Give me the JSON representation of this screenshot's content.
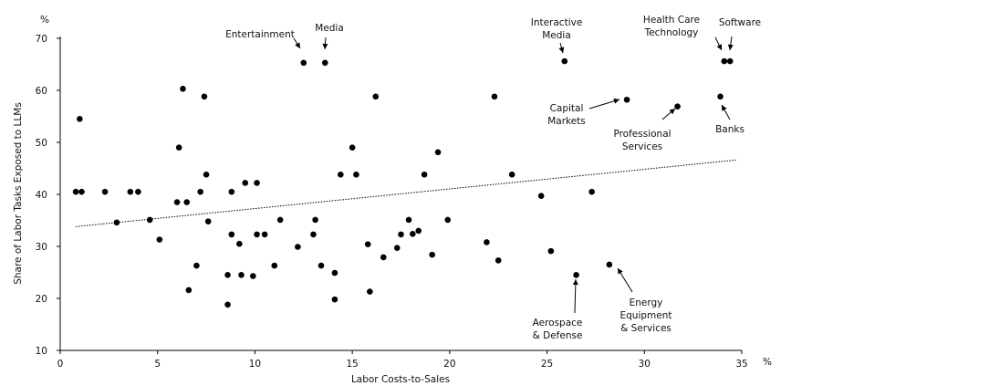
{
  "chart_data": {
    "type": "scatter",
    "xlabel": "Labor Costs-to-Sales",
    "ylabel": "Share of Labor Tasks Exposed to LLMs",
    "x_unit": "%",
    "y_unit": "%",
    "xlim": [
      0,
      35
    ],
    "ylim": [
      10,
      70
    ],
    "x_ticks": [
      0,
      5,
      10,
      15,
      20,
      25,
      30,
      35
    ],
    "y_ticks": [
      10,
      20,
      30,
      40,
      50,
      60,
      70
    ],
    "grid": false,
    "trendline": {
      "style": "dotted",
      "x": [
        0.8,
        34.7
      ],
      "y": [
        33.8,
        46.6
      ]
    },
    "points": [
      {
        "x": 0.8,
        "y": 40.5
      },
      {
        "x": 1.0,
        "y": 54.5
      },
      {
        "x": 1.1,
        "y": 40.5
      },
      {
        "x": 2.3,
        "y": 40.5
      },
      {
        "x": 2.9,
        "y": 34.6
      },
      {
        "x": 3.6,
        "y": 40.5
      },
      {
        "x": 4.0,
        "y": 40.5
      },
      {
        "x": 4.6,
        "y": 35.1
      },
      {
        "x": 5.1,
        "y": 31.3
      },
      {
        "x": 6.0,
        "y": 38.5
      },
      {
        "x": 6.1,
        "y": 49.0
      },
      {
        "x": 6.3,
        "y": 60.3
      },
      {
        "x": 6.5,
        "y": 38.5
      },
      {
        "x": 6.6,
        "y": 21.6
      },
      {
        "x": 7.0,
        "y": 26.3
      },
      {
        "x": 7.2,
        "y": 40.5
      },
      {
        "x": 7.4,
        "y": 58.8
      },
      {
        "x": 7.5,
        "y": 43.8
      },
      {
        "x": 7.6,
        "y": 34.8
      },
      {
        "x": 8.6,
        "y": 24.5
      },
      {
        "x": 8.6,
        "y": 18.8
      },
      {
        "x": 8.8,
        "y": 32.3
      },
      {
        "x": 8.8,
        "y": 40.5
      },
      {
        "x": 9.2,
        "y": 30.5
      },
      {
        "x": 9.3,
        "y": 24.5
      },
      {
        "x": 9.5,
        "y": 42.2
      },
      {
        "x": 9.9,
        "y": 24.3
      },
      {
        "x": 10.1,
        "y": 32.3
      },
      {
        "x": 10.1,
        "y": 42.2
      },
      {
        "x": 10.5,
        "y": 32.3
      },
      {
        "x": 11.0,
        "y": 26.3
      },
      {
        "x": 11.3,
        "y": 35.1
      },
      {
        "x": 12.2,
        "y": 29.9
      },
      {
        "x": 12.5,
        "y": 65.3
      },
      {
        "x": 13.0,
        "y": 32.3
      },
      {
        "x": 13.1,
        "y": 35.1
      },
      {
        "x": 13.4,
        "y": 26.3
      },
      {
        "x": 13.6,
        "y": 65.3
      },
      {
        "x": 14.1,
        "y": 24.9
      },
      {
        "x": 14.1,
        "y": 19.8
      },
      {
        "x": 14.4,
        "y": 43.8
      },
      {
        "x": 15.0,
        "y": 49.0
      },
      {
        "x": 15.2,
        "y": 43.8
      },
      {
        "x": 15.8,
        "y": 30.4
      },
      {
        "x": 15.9,
        "y": 21.3
      },
      {
        "x": 16.2,
        "y": 58.8
      },
      {
        "x": 16.6,
        "y": 27.9
      },
      {
        "x": 17.3,
        "y": 29.7
      },
      {
        "x": 17.5,
        "y": 32.3
      },
      {
        "x": 17.9,
        "y": 35.1
      },
      {
        "x": 18.1,
        "y": 32.4
      },
      {
        "x": 18.4,
        "y": 33.0
      },
      {
        "x": 18.7,
        "y": 43.8
      },
      {
        "x": 19.1,
        "y": 28.4
      },
      {
        "x": 19.4,
        "y": 48.1
      },
      {
        "x": 19.9,
        "y": 35.1
      },
      {
        "x": 21.9,
        "y": 30.8
      },
      {
        "x": 22.3,
        "y": 58.8
      },
      {
        "x": 22.5,
        "y": 27.3
      },
      {
        "x": 23.2,
        "y": 43.8
      },
      {
        "x": 24.7,
        "y": 39.7
      },
      {
        "x": 25.2,
        "y": 29.1
      },
      {
        "x": 25.9,
        "y": 65.6
      },
      {
        "x": 26.5,
        "y": 24.5
      },
      {
        "x": 27.3,
        "y": 40.5
      },
      {
        "x": 28.2,
        "y": 26.5
      },
      {
        "x": 29.1,
        "y": 58.2
      },
      {
        "x": 31.7,
        "y": 56.9
      },
      {
        "x": 33.9,
        "y": 58.8
      },
      {
        "x": 34.1,
        "y": 65.6
      },
      {
        "x": 34.4,
        "y": 65.6
      }
    ],
    "annotations": [
      {
        "id": "entertainment",
        "lines": [
          "Entertainment"
        ]
      },
      {
        "id": "media",
        "lines": [
          "Media"
        ]
      },
      {
        "id": "interactive-media",
        "lines": [
          "Interactive",
          "Media"
        ]
      },
      {
        "id": "health-care-technology",
        "lines": [
          "Health Care",
          "Technology"
        ]
      },
      {
        "id": "software",
        "lines": [
          "Software"
        ]
      },
      {
        "id": "capital-markets",
        "lines": [
          "Capital",
          "Markets"
        ]
      },
      {
        "id": "professional-services",
        "lines": [
          "Professional",
          "Services"
        ]
      },
      {
        "id": "banks",
        "lines": [
          "Banks"
        ]
      },
      {
        "id": "aerospace-defense",
        "lines": [
          "Aerospace",
          "& Defense"
        ]
      },
      {
        "id": "energy-equipment-services",
        "lines": [
          "Energy",
          "Equipment",
          "& Services"
        ]
      }
    ]
  }
}
